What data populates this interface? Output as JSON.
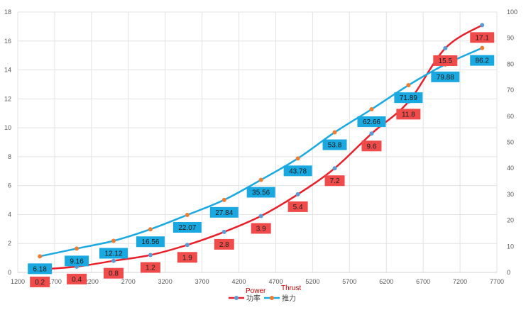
{
  "chart_data": {
    "type": "line",
    "xlim": [
      1200,
      7700
    ],
    "x_ticks": [
      "1200",
      "1700",
      "2200",
      "2700",
      "3200",
      "3700",
      "4200",
      "4700",
      "5200",
      "5700",
      "6200",
      "6700",
      "7200",
      "7700"
    ],
    "y_left": {
      "range": [
        0,
        18
      ],
      "ticks": [
        "0",
        "2",
        "4",
        "6",
        "8",
        "10",
        "12",
        "14",
        "16",
        "18"
      ]
    },
    "y_right": {
      "range": [
        0,
        100
      ],
      "ticks": [
        "0",
        "10",
        "20",
        "30",
        "40",
        "50",
        "60",
        "70",
        "80",
        "90",
        "100"
      ]
    },
    "grid": true,
    "legend_position": "bottom",
    "x": [
      1500,
      2000,
      2500,
      3000,
      3500,
      4000,
      4500,
      5000,
      5500,
      6000,
      6500,
      7000,
      7500
    ],
    "series": [
      {
        "name": "功率",
        "axis": "left",
        "color": "#e8202a",
        "marker_color": "#5b9bd5",
        "label_bg": "#f04b4b",
        "values": [
          0.2,
          0.4,
          0.8,
          1.2,
          1.9,
          2.8,
          3.9,
          5.4,
          7.2,
          9.6,
          11.8,
          15.5,
          17.1
        ],
        "labels": [
          "0.2",
          "0.4",
          "0.8",
          "1.2",
          "1.9",
          "2.8",
          "3.9",
          "5.4",
          "7.2",
          "9.6",
          "11.8",
          "15.5",
          "17.1"
        ]
      },
      {
        "name": "推力",
        "axis": "right",
        "color": "#1aa9e0",
        "marker_color": "#ed7d31",
        "label_bg": "#19a9e0",
        "values": [
          6.18,
          9.16,
          12.12,
          16.56,
          22.07,
          27.84,
          35.56,
          43.78,
          53.8,
          62.66,
          71.89,
          79.88,
          86.2
        ],
        "labels": [
          "6.18",
          "9.16",
          "12.12",
          "16.56",
          "22.07",
          "27.84",
          "35.56",
          "43.78",
          "53.8",
          "62.66",
          "71.89",
          "79.88",
          "86.2"
        ]
      }
    ],
    "annotations": [
      "Power",
      "Thrust"
    ]
  }
}
